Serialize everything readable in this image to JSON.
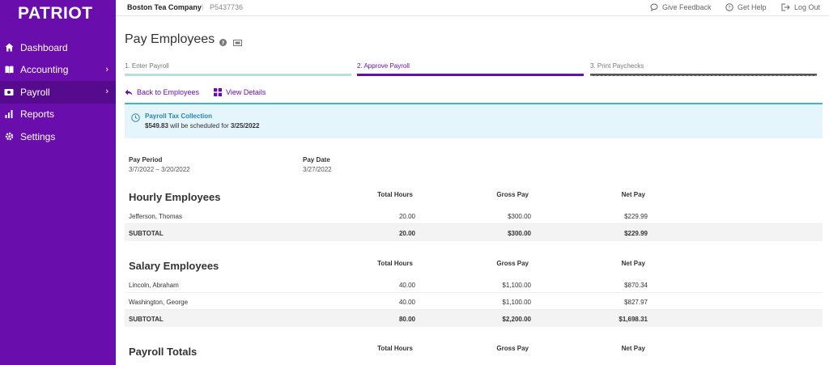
{
  "app": {
    "logo": "PATRIOT"
  },
  "sidebar": {
    "items": [
      {
        "label": "Dashboard",
        "icon": "dashboard-icon",
        "has_arrow": false
      },
      {
        "label": "Accounting",
        "icon": "book-icon",
        "has_arrow": true
      },
      {
        "label": "Payroll",
        "icon": "payroll-icon",
        "has_arrow": true,
        "active": true
      },
      {
        "label": "Reports",
        "icon": "bar-chart-icon",
        "has_arrow": false
      },
      {
        "label": "Settings",
        "icon": "gear-icon",
        "has_arrow": false
      }
    ]
  },
  "topbar": {
    "company": "Boston Tea Company",
    "separator": "|",
    "company_id": "P5437736",
    "feedback": "Give Feedback",
    "help": "Get Help",
    "logout": "Log Out"
  },
  "page": {
    "title": "Pay Employees",
    "steps": [
      {
        "label": "1. Enter Payroll",
        "color": "#b7dfe0"
      },
      {
        "label": "2. Approve Payroll",
        "color": "#6a0dad",
        "active": true
      },
      {
        "label": "3. Print Paychecks",
        "color": "#555555"
      }
    ],
    "back_label": "Back to Employees",
    "details_label": "View Details"
  },
  "banner": {
    "title": "Payroll Tax Collection",
    "amount": "$549.83",
    "middle_text": " will be scheduled for ",
    "date": "3/25/2022"
  },
  "pay_info": {
    "period_label": "Pay Period",
    "period_value": "3/7/2022 – 3/20/2022",
    "date_label": "Pay Date",
    "date_value": "3/27/2022"
  },
  "columns": {
    "hours": "Total Hours",
    "gross": "Gross Pay",
    "net": "Net Pay"
  },
  "hourly": {
    "title": "Hourly Employees",
    "rows": [
      {
        "name": "Jefferson, Thomas",
        "hours": "20.00",
        "gross": "$300.00",
        "net": "$229.99"
      }
    ],
    "subtotal": {
      "label": "SUBTOTAL",
      "hours": "20.00",
      "gross": "$300.00",
      "net": "$229.99"
    }
  },
  "salary": {
    "title": "Salary Employees",
    "rows": [
      {
        "name": "Lincoln, Abraham",
        "hours": "40.00",
        "gross": "$1,100.00",
        "net": "$870.34"
      },
      {
        "name": "Washington, George",
        "hours": "40.00",
        "gross": "$1,100.00",
        "net": "$827.97"
      }
    ],
    "subtotal": {
      "label": "SUBTOTAL",
      "hours": "80.00",
      "gross": "$2,200.00",
      "net": "$1,698.31"
    }
  },
  "totals": {
    "title": "Payroll Totals"
  },
  "colors": {
    "brand": "#6a0dad",
    "banner_bg": "#e4f5fb",
    "banner_accent": "#3fb2d6"
  }
}
